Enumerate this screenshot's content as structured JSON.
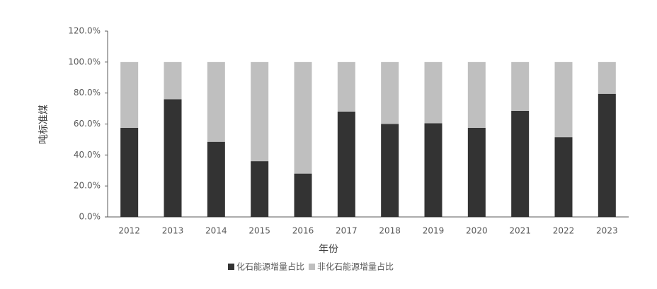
{
  "chart_data": {
    "type": "stacked_bar",
    "y_label": "吨标准煤",
    "x_label": "年份",
    "categories": [
      "2012",
      "2013",
      "2014",
      "2015",
      "2016",
      "2017",
      "2018",
      "2019",
      "2020",
      "2021",
      "2022",
      "2023"
    ],
    "series": [
      {
        "name": "化石能源增量占比",
        "color": "#333333",
        "values": [
          57.5,
          76,
          48.5,
          36,
          28,
          68,
          60,
          60.5,
          57.5,
          68.5,
          51.5,
          79.5
        ]
      },
      {
        "name": "非化石能源增量占比",
        "color": "#bfbfbf",
        "values": [
          42.5,
          24,
          51.5,
          64,
          72,
          32,
          40,
          39.5,
          42.5,
          31.5,
          48.5,
          20.5
        ]
      }
    ],
    "ylim": [
      0,
      120
    ],
    "yticks": [
      {
        "value": 0,
        "label": "0.0%"
      },
      {
        "value": 20,
        "label": "20.0%"
      },
      {
        "value": 40,
        "label": "40.0%"
      },
      {
        "value": 60,
        "label": "60.0%"
      },
      {
        "value": 80,
        "label": "80.0%"
      },
      {
        "value": 100,
        "label": "100.0%"
      },
      {
        "value": 120,
        "label": "120.0%"
      }
    ],
    "legend": "bottom"
  }
}
